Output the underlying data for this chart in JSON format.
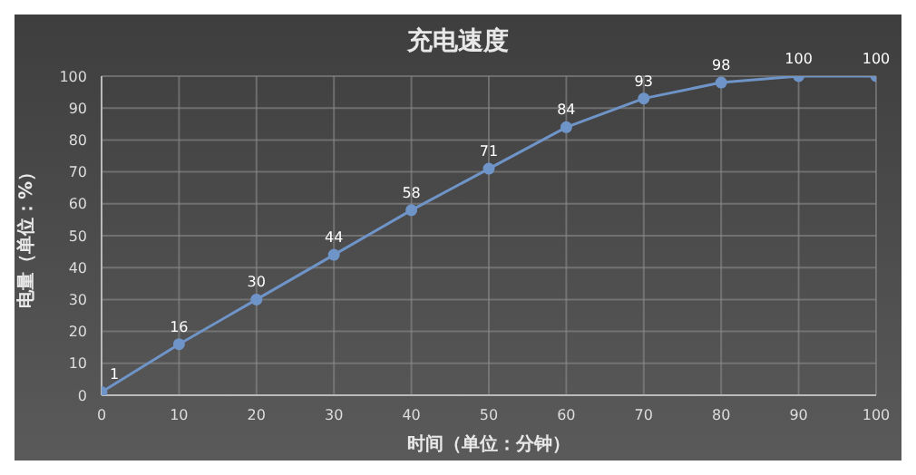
{
  "chart_data": {
    "type": "line",
    "title": "充电速度",
    "xlabel": "时间（单位：分钟）",
    "ylabel": "电量（单位：%）",
    "x": [
      0,
      10,
      20,
      30,
      40,
      50,
      60,
      70,
      80,
      90,
      100
    ],
    "series": [
      {
        "color": "#6f94c8",
        "values": [
          1,
          16,
          30,
          44,
          58,
          71,
          84,
          93,
          98,
          100,
          100
        ]
      }
    ],
    "xlim": [
      0,
      100
    ],
    "xticks": [
      0,
      10,
      20,
      30,
      40,
      50,
      60,
      70,
      80,
      90,
      100
    ],
    "ylim": [
      0,
      100
    ],
    "yticks": [
      0,
      10,
      20,
      30,
      40,
      50,
      60,
      70,
      80,
      90,
      100
    ],
    "grid": true,
    "legend": false,
    "marker": "circle",
    "line_style": "solid",
    "data_labels": true
  }
}
